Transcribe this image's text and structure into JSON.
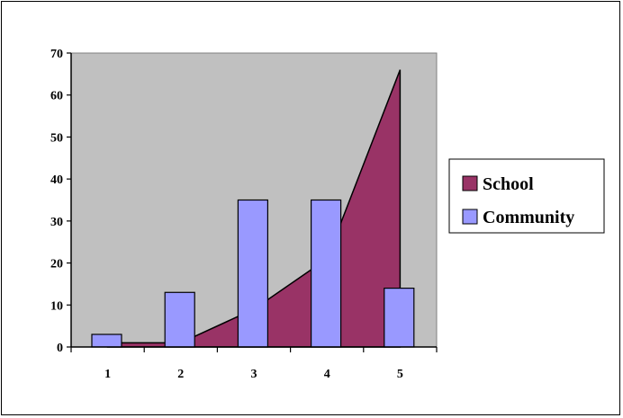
{
  "chart_data": {
    "type": "bar",
    "categories": [
      "1",
      "2",
      "3",
      "4",
      "5"
    ],
    "series": [
      {
        "name": "School",
        "chart_type": "area",
        "values": [
          1,
          1,
          9,
          21,
          66
        ],
        "color": "#993366"
      },
      {
        "name": "Community",
        "chart_type": "bar",
        "values": [
          3,
          13,
          35,
          35,
          14
        ],
        "color": "#9999ff"
      }
    ],
    "y_ticks": [
      "0",
      "10",
      "20",
      "30",
      "40",
      "50",
      "60",
      "70"
    ],
    "ylim": [
      0,
      70
    ],
    "plot_background": "#c0c0c0",
    "grid": false,
    "legend_position": "right"
  }
}
